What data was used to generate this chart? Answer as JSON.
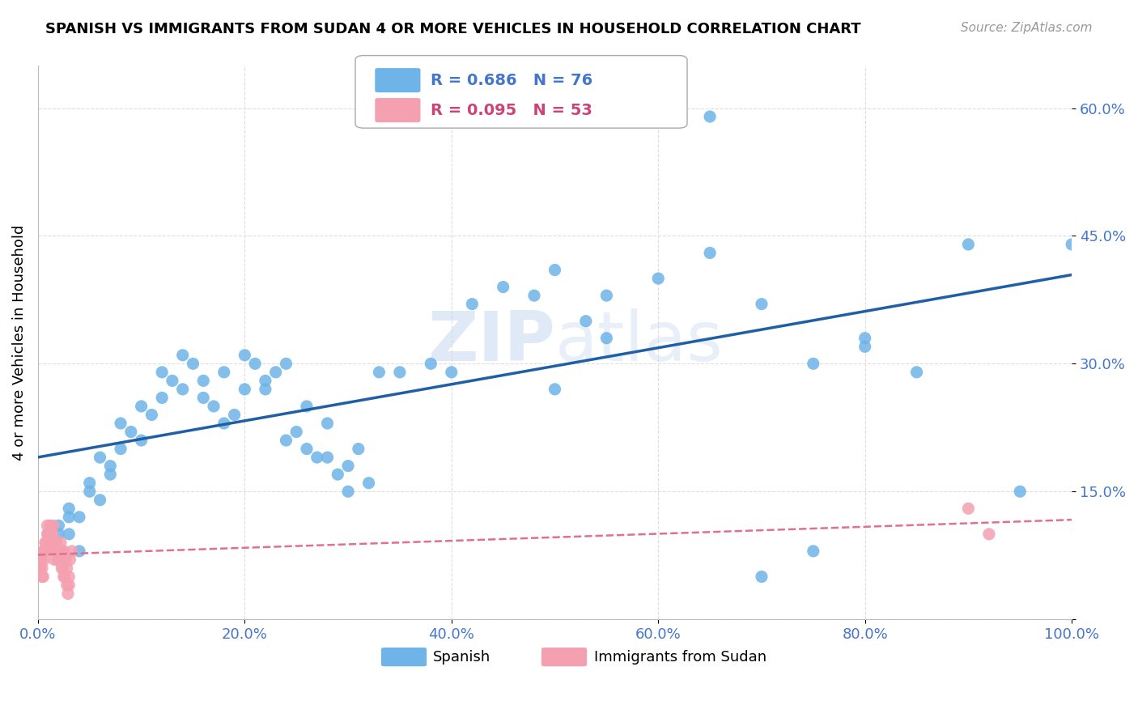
{
  "title": "SPANISH VS IMMIGRANTS FROM SUDAN 4 OR MORE VEHICLES IN HOUSEHOLD CORRELATION CHART",
  "source": "Source: ZipAtlas.com",
  "ylabel": "4 or more Vehicles in Household",
  "xlim": [
    0.0,
    1.0
  ],
  "ylim": [
    0.0,
    0.65
  ],
  "xtick_vals": [
    0.0,
    0.2,
    0.4,
    0.6,
    0.8,
    1.0
  ],
  "xtick_labels": [
    "0.0%",
    "20.0%",
    "40.0%",
    "60.0%",
    "80.0%",
    "100.0%"
  ],
  "ytick_vals": [
    0.0,
    0.15,
    0.3,
    0.45,
    0.6
  ],
  "ytick_labels": [
    "",
    "15.0%",
    "30.0%",
    "45.0%",
    "60.0%"
  ],
  "legend_r_spanish": "R = 0.686",
  "legend_n_spanish": "N = 76",
  "legend_r_sudan": "R = 0.095",
  "legend_n_sudan": "N = 53",
  "blue_color": "#6eb4e8",
  "blue_line_color": "#1f5fa6",
  "pink_color": "#f4a0b0",
  "pink_line_color": "#e07090",
  "watermark_zip": "ZIP",
  "watermark_atlas": "atlas",
  "background_color": "#ffffff",
  "grid_color": "#dddddd",
  "spanish_x": [
    0.02,
    0.03,
    0.04,
    0.02,
    0.03,
    0.05,
    0.06,
    0.04,
    0.03,
    0.05,
    0.07,
    0.08,
    0.06,
    0.07,
    0.09,
    0.1,
    0.08,
    0.11,
    0.12,
    0.1,
    0.13,
    0.14,
    0.12,
    0.15,
    0.16,
    0.14,
    0.17,
    0.18,
    0.16,
    0.19,
    0.2,
    0.18,
    0.21,
    0.22,
    0.2,
    0.23,
    0.24,
    0.22,
    0.25,
    0.26,
    0.24,
    0.27,
    0.28,
    0.26,
    0.29,
    0.3,
    0.28,
    0.31,
    0.32,
    0.3,
    0.33,
    0.35,
    0.38,
    0.4,
    0.42,
    0.45,
    0.48,
    0.5,
    0.53,
    0.55,
    0.6,
    0.65,
    0.7,
    0.75,
    0.8,
    0.85,
    0.9,
    0.95,
    1.0,
    0.5,
    0.55,
    0.6,
    0.65,
    0.7,
    0.75,
    0.8
  ],
  "spanish_y": [
    0.1,
    0.12,
    0.08,
    0.11,
    0.13,
    0.15,
    0.14,
    0.12,
    0.1,
    0.16,
    0.18,
    0.2,
    0.19,
    0.17,
    0.22,
    0.21,
    0.23,
    0.24,
    0.26,
    0.25,
    0.28,
    0.27,
    0.29,
    0.3,
    0.28,
    0.31,
    0.25,
    0.23,
    0.26,
    0.24,
    0.27,
    0.29,
    0.3,
    0.28,
    0.31,
    0.29,
    0.3,
    0.27,
    0.22,
    0.2,
    0.21,
    0.19,
    0.23,
    0.25,
    0.17,
    0.18,
    0.19,
    0.2,
    0.16,
    0.15,
    0.29,
    0.29,
    0.3,
    0.29,
    0.37,
    0.39,
    0.38,
    0.27,
    0.35,
    0.33,
    0.62,
    0.59,
    0.05,
    0.08,
    0.33,
    0.29,
    0.44,
    0.15,
    0.44,
    0.41,
    0.38,
    0.4,
    0.43,
    0.37,
    0.3,
    0.32
  ],
  "sudan_x": [
    0.002,
    0.003,
    0.004,
    0.002,
    0.003,
    0.005,
    0.006,
    0.004,
    0.005,
    0.006,
    0.008,
    0.009,
    0.007,
    0.008,
    0.01,
    0.011,
    0.009,
    0.01,
    0.012,
    0.011,
    0.013,
    0.014,
    0.013,
    0.015,
    0.016,
    0.014,
    0.017,
    0.016,
    0.015,
    0.018,
    0.019,
    0.02,
    0.018,
    0.021,
    0.02,
    0.022,
    0.023,
    0.021,
    0.024,
    0.025,
    0.023,
    0.026,
    0.027,
    0.025,
    0.028,
    0.03,
    0.028,
    0.031,
    0.029,
    0.03,
    0.033,
    0.9,
    0.92
  ],
  "sudan_y": [
    0.06,
    0.07,
    0.05,
    0.06,
    0.07,
    0.08,
    0.07,
    0.06,
    0.05,
    0.08,
    0.09,
    0.1,
    0.09,
    0.08,
    0.1,
    0.09,
    0.11,
    0.1,
    0.11,
    0.09,
    0.1,
    0.09,
    0.1,
    0.11,
    0.09,
    0.1,
    0.08,
    0.07,
    0.09,
    0.08,
    0.07,
    0.08,
    0.09,
    0.07,
    0.08,
    0.09,
    0.08,
    0.07,
    0.06,
    0.05,
    0.06,
    0.05,
    0.07,
    0.08,
    0.04,
    0.05,
    0.06,
    0.07,
    0.03,
    0.04,
    0.08,
    0.13,
    0.1
  ]
}
